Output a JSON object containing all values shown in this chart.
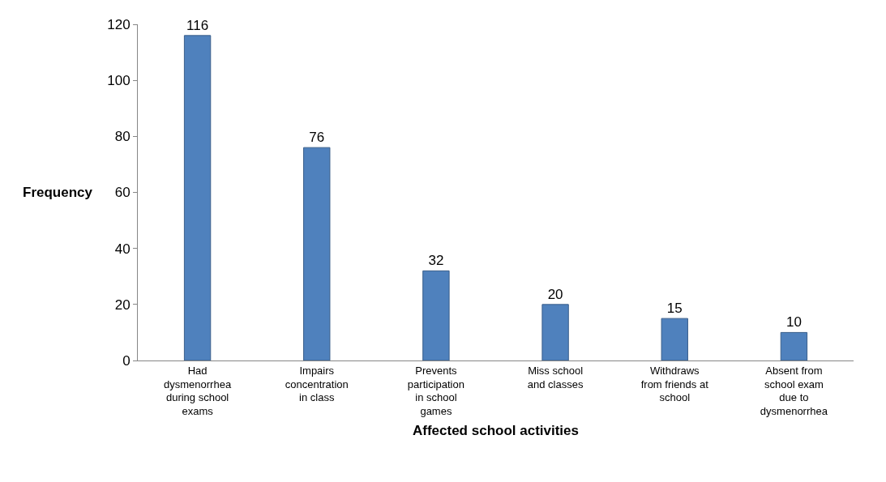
{
  "chart_data": {
    "type": "bar",
    "xlabel": "Affected school activities",
    "ylabel": "Frequency",
    "categories": [
      "Had\ndysmenorrhea\nduring school\nexams",
      "Impairs\nconcentration\nin class",
      "Prevents\nparticipation\nin school\ngames",
      "Miss school\nand classes",
      "Withdraws\nfrom friends at\nschool",
      "Absent from\nschool exam\ndue to\ndysmenorrhea"
    ],
    "values": [
      116,
      76,
      32,
      20,
      15,
      10
    ],
    "color": "#4f81bd",
    "ylim": [
      0,
      120
    ],
    "yticks": [
      0,
      20,
      40,
      60,
      80,
      100,
      120
    ],
    "data_labels": true
  }
}
